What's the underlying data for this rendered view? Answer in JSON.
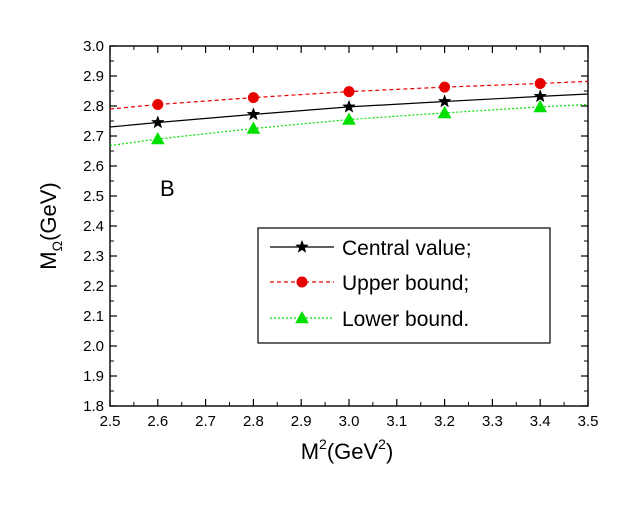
{
  "chart_data": {
    "type": "line",
    "title": "",
    "panel_label": "B",
    "xlabel": {
      "base": "M",
      "sup": "2",
      "unit_open": "(GeV",
      "unit_sup": "2",
      "unit_close": ")"
    },
    "ylabel": {
      "base": "M",
      "sub": "Ω",
      "unit": "(GeV)"
    },
    "xlim": [
      2.5,
      3.5
    ],
    "ylim": [
      1.8,
      3.0
    ],
    "xticks": [
      "2.5",
      "2.6",
      "2.7",
      "2.8",
      "2.9",
      "3.0",
      "3.1",
      "3.2",
      "3.3",
      "3.4",
      "3.5"
    ],
    "yticks": [
      "1.8",
      "1.9",
      "2.0",
      "2.1",
      "2.2",
      "2.3",
      "2.4",
      "2.5",
      "2.6",
      "2.7",
      "2.8",
      "2.9",
      "3.0"
    ],
    "grid": false,
    "legend_position": "right",
    "x": [
      2.5,
      2.6,
      2.8,
      3.0,
      3.2,
      3.4,
      3.5
    ],
    "series": [
      {
        "name": "Central value;",
        "color": "#000000",
        "marker": "star",
        "dash": "solid",
        "values": [
          2.73,
          2.745,
          2.772,
          2.797,
          2.815,
          2.832,
          2.84
        ],
        "marker_x": [
          2.6,
          2.8,
          3.0,
          3.2,
          3.4
        ]
      },
      {
        "name": "Upper bound;",
        "color": "#e60000",
        "marker": "circle",
        "dash": "dashed",
        "values": [
          2.79,
          2.805,
          2.828,
          2.848,
          2.863,
          2.875,
          2.882
        ],
        "marker_x": [
          2.6,
          2.8,
          3.0,
          3.2,
          3.4
        ]
      },
      {
        "name": "Lower bound.",
        "color": "#00e000",
        "marker": "triangle",
        "dash": "dotted",
        "values": [
          2.668,
          2.69,
          2.725,
          2.755,
          2.777,
          2.797,
          2.805
        ],
        "marker_x": [
          2.6,
          2.8,
          3.0,
          3.2,
          3.4
        ]
      }
    ]
  }
}
